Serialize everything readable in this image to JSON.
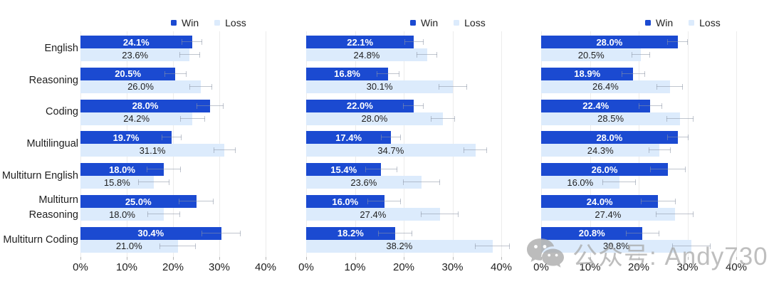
{
  "legend": {
    "items": [
      {
        "label": "Win",
        "color": "#1b4ad1"
      },
      {
        "label": "Loss",
        "color": "#dcebfc"
      }
    ]
  },
  "axis": {
    "tick_labels": [
      "0%",
      "10%",
      "20%",
      "30%",
      "40%"
    ],
    "tick_values": [
      0,
      10,
      20,
      30,
      40
    ],
    "max": 40,
    "unit": "%"
  },
  "categories": [
    "English",
    "Reasoning",
    "Coding",
    "Multilingual",
    "Multiturn English",
    "Multiturn Reasoning",
    "Multiturn Coding"
  ],
  "chart_data": [
    {
      "type": "bar",
      "orientation": "horizontal",
      "title": "",
      "categories": [
        "English",
        "Reasoning",
        "Coding",
        "Multilingual",
        "Multiturn English",
        "Multiturn Reasoning",
        "Multiturn Coding"
      ],
      "xlim": [
        0,
        40
      ],
      "grid": true,
      "legend_position": "top",
      "series": [
        {
          "name": "Win",
          "values": [
            24.1,
            20.5,
            28.0,
            19.7,
            18.0,
            25.0,
            30.4
          ],
          "errors": [
            2.2,
            2.4,
            2.9,
            2.2,
            3.7,
            3.8,
            4.2
          ]
        },
        {
          "name": "Loss",
          "values": [
            23.6,
            26.0,
            24.2,
            31.1,
            15.8,
            18.0,
            21.0
          ],
          "errors": [
            2.2,
            2.5,
            2.7,
            2.4,
            3.4,
            3.6,
            3.9
          ]
        }
      ]
    },
    {
      "type": "bar",
      "orientation": "horizontal",
      "title": "",
      "categories": [
        "English",
        "Reasoning",
        "Coding",
        "Multilingual",
        "Multiturn English",
        "Multiturn Reasoning",
        "Multiturn Coding"
      ],
      "xlim": [
        0,
        40
      ],
      "grid": true,
      "legend_position": "top",
      "series": [
        {
          "name": "Win",
          "values": [
            22.1,
            16.8,
            22.0,
            17.4,
            15.4,
            16.0,
            18.2
          ],
          "errors": [
            2.0,
            2.3,
            2.1,
            2.0,
            3.3,
            3.4,
            3.5
          ]
        },
        {
          "name": "Loss",
          "values": [
            24.8,
            30.1,
            28.0,
            34.7,
            23.6,
            27.4,
            38.2
          ],
          "errors": [
            2.1,
            2.9,
            2.5,
            2.4,
            3.8,
            3.9,
            3.6
          ]
        }
      ]
    },
    {
      "type": "bar",
      "orientation": "horizontal",
      "title": "",
      "categories": [
        "English",
        "Reasoning",
        "Coding",
        "Multilingual",
        "Multiturn English",
        "Multiturn Reasoning",
        "Multiturn Coding"
      ],
      "xlim": [
        0,
        40
      ],
      "grid": true,
      "legend_position": "top",
      "series": [
        {
          "name": "Win",
          "values": [
            28.0,
            18.9,
            22.4,
            28.0,
            26.0,
            24.0,
            20.8
          ],
          "errors": [
            2.1,
            2.4,
            2.4,
            2.2,
            3.7,
            3.6,
            3.5
          ]
        },
        {
          "name": "Loss",
          "values": [
            20.5,
            26.4,
            28.5,
            24.3,
            16.0,
            27.4,
            30.8
          ],
          "errors": [
            1.9,
            2.7,
            2.8,
            2.3,
            3.4,
            3.9,
            4.0
          ]
        }
      ]
    }
  ],
  "colors": {
    "win": "#1b4ad1",
    "loss": "#dcebfc",
    "error_bar": "#8c96a5",
    "grid": "#ececec",
    "tick": "#b6b6b6",
    "text": "#1f1f1f",
    "watermark": "#a5a5a5"
  },
  "watermark": {
    "icon": "wechat-icon",
    "text": "公众号: Andy730"
  }
}
